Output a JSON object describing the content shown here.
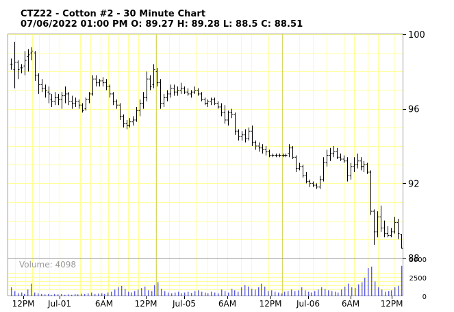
{
  "header": {
    "title": "CTZ22 - Cotton #2 - 30 Minute Chart",
    "ohlc_line": "07/06/2022 01:00 PM O: 89.27 H: 89.28 L: 88.5 C: 88.51"
  },
  "volume_label": "Volume: 4098",
  "chart_data": {
    "type": "bar",
    "symbol": "CTZ22",
    "name": "Cotton #2",
    "interval": "30 Minute",
    "last_bar": {
      "date": "07/06/2022 01:00 PM",
      "open": 89.27,
      "high": 89.28,
      "low": 88.5,
      "close": 88.51
    },
    "price_axis": {
      "ticks": [
        100,
        96,
        92,
        88
      ],
      "range": [
        88,
        100
      ],
      "side": "right",
      "grid": true
    },
    "volume_axis": {
      "ticks": [
        5000,
        2500,
        0
      ],
      "range": [
        0,
        5000
      ]
    },
    "x_ticks": [
      "12PM",
      "Jul-01",
      "6AM",
      "12PM",
      "Jul-05",
      "6AM",
      "12PM",
      "Jul-06",
      "6AM",
      "12PM"
    ],
    "colors": {
      "bars": "#000000",
      "grid": "#ffff99",
      "volume": "#5c5cdc",
      "panel_border": "#999999",
      "volume_label": "#999999"
    },
    "ohlc": [
      [
        98.4,
        98.7,
        98.1,
        98.4
      ],
      [
        98.1,
        99.6,
        97.1,
        98.5
      ],
      [
        98.5,
        98.6,
        97.6,
        98.1
      ],
      [
        98.2,
        98.4,
        97.9,
        98.2
      ],
      [
        98.3,
        99.1,
        97.8,
        98.6
      ],
      [
        98.8,
        99.2,
        98.0,
        98.9
      ],
      [
        99.0,
        99.3,
        98.6,
        99.1
      ],
      [
        99.0,
        99.1,
        97.5,
        97.8
      ],
      [
        97.8,
        97.9,
        96.8,
        97.3
      ],
      [
        97.3,
        97.6,
        96.9,
        97.1
      ],
      [
        97.1,
        97.3,
        96.6,
        97.0
      ],
      [
        96.9,
        97.2,
        96.3,
        96.8
      ],
      [
        96.5,
        96.8,
        96.1,
        96.4
      ],
      [
        96.4,
        96.9,
        96.2,
        96.6
      ],
      [
        96.6,
        96.8,
        96.2,
        96.5
      ],
      [
        96.5,
        96.9,
        96.0,
        96.7
      ],
      [
        96.7,
        97.2,
        96.3,
        96.8
      ],
      [
        96.8,
        96.9,
        96.2,
        96.4
      ],
      [
        96.4,
        96.7,
        96.0,
        96.3
      ],
      [
        96.3,
        96.6,
        96.1,
        96.4
      ],
      [
        96.4,
        96.5,
        96.0,
        96.2
      ],
      [
        96.2,
        96.3,
        95.8,
        95.9
      ],
      [
        96.0,
        96.6,
        95.9,
        96.5
      ],
      [
        96.5,
        96.9,
        96.3,
        96.8
      ],
      [
        96.8,
        97.8,
        96.7,
        97.6
      ],
      [
        97.6,
        97.8,
        97.2,
        97.4
      ],
      [
        97.4,
        97.6,
        97.2,
        97.5
      ],
      [
        97.5,
        97.7,
        97.2,
        97.4
      ],
      [
        97.4,
        97.6,
        97.0,
        97.2
      ],
      [
        97.2,
        97.3,
        96.6,
        96.8
      ],
      [
        96.8,
        96.9,
        96.2,
        96.4
      ],
      [
        96.4,
        96.5,
        96.0,
        96.2
      ],
      [
        96.2,
        96.3,
        95.4,
        95.6
      ],
      [
        95.6,
        95.7,
        95.0,
        95.2
      ],
      [
        95.2,
        95.4,
        94.9,
        95.1
      ],
      [
        95.1,
        95.5,
        95.0,
        95.3
      ],
      [
        95.3,
        95.6,
        95.1,
        95.4
      ],
      [
        95.4,
        96.1,
        95.3,
        95.9
      ],
      [
        95.9,
        96.5,
        95.6,
        96.3
      ],
      [
        96.3,
        96.9,
        96.0,
        96.6
      ],
      [
        96.6,
        98.0,
        96.4,
        97.6
      ],
      [
        97.6,
        97.8,
        97.0,
        97.2
      ],
      [
        97.3,
        98.4,
        97.1,
        98.1
      ],
      [
        98.0,
        98.2,
        97.2,
        97.4
      ],
      [
        97.4,
        97.6,
        96.0,
        96.3
      ],
      [
        96.3,
        96.8,
        96.1,
        96.6
      ],
      [
        96.6,
        97.0,
        96.4,
        96.8
      ],
      [
        96.8,
        97.3,
        96.6,
        97.1
      ],
      [
        97.1,
        97.3,
        96.7,
        96.9
      ],
      [
        96.9,
        97.2,
        96.7,
        97.0
      ],
      [
        97.0,
        97.4,
        96.8,
        97.1
      ],
      [
        97.1,
        97.2,
        96.8,
        96.9
      ],
      [
        96.9,
        97.1,
        96.7,
        96.8
      ],
      [
        96.8,
        97.0,
        96.6,
        96.9
      ],
      [
        96.9,
        97.2,
        96.8,
        97.0
      ],
      [
        97.0,
        97.1,
        96.7,
        96.8
      ],
      [
        96.8,
        96.9,
        96.4,
        96.5
      ],
      [
        96.5,
        96.6,
        96.2,
        96.3
      ],
      [
        96.3,
        96.5,
        96.1,
        96.4
      ],
      [
        96.4,
        96.6,
        96.2,
        96.5
      ],
      [
        96.5,
        96.6,
        96.2,
        96.3
      ],
      [
        96.3,
        96.4,
        96.0,
        96.1
      ],
      [
        96.1,
        96.3,
        95.6,
        95.8
      ],
      [
        95.8,
        96.2,
        95.2,
        95.4
      ],
      [
        95.4,
        95.9,
        95.1,
        95.8
      ],
      [
        95.8,
        96.0,
        95.5,
        95.7
      ],
      [
        95.7,
        95.8,
        94.6,
        94.8
      ],
      [
        94.8,
        94.9,
        94.3,
        94.5
      ],
      [
        94.5,
        94.8,
        94.3,
        94.6
      ],
      [
        94.6,
        94.9,
        94.2,
        94.4
      ],
      [
        94.4,
        95.0,
        94.3,
        94.8
      ],
      [
        94.8,
        95.1,
        94.0,
        94.2
      ],
      [
        94.2,
        94.3,
        93.8,
        94.0
      ],
      [
        94.0,
        94.2,
        93.7,
        93.9
      ],
      [
        93.9,
        94.1,
        93.6,
        93.8
      ],
      [
        93.8,
        94.0,
        93.5,
        93.7
      ],
      [
        93.7,
        93.8,
        93.4,
        93.5
      ],
      [
        93.5,
        93.6,
        93.4,
        93.5
      ],
      [
        93.5,
        93.6,
        93.4,
        93.5
      ],
      [
        93.5,
        93.6,
        93.4,
        93.5
      ],
      [
        93.5,
        93.6,
        93.4,
        93.5
      ],
      [
        93.5,
        93.6,
        93.4,
        93.5
      ],
      [
        93.6,
        94.1,
        93.4,
        93.9
      ],
      [
        93.9,
        94.0,
        93.3,
        93.4
      ],
      [
        93.4,
        93.5,
        92.6,
        92.8
      ],
      [
        92.8,
        93.1,
        92.7,
        92.9
      ],
      [
        92.9,
        93.0,
        92.3,
        92.4
      ],
      [
        92.4,
        92.6,
        92.0,
        92.1
      ],
      [
        92.1,
        92.2,
        91.8,
        92.0
      ],
      [
        92.0,
        92.1,
        91.8,
        91.9
      ],
      [
        91.9,
        92.0,
        91.7,
        91.8
      ],
      [
        91.8,
        92.4,
        91.7,
        92.2
      ],
      [
        92.2,
        93.4,
        92.1,
        93.1
      ],
      [
        93.1,
        93.8,
        92.9,
        93.5
      ],
      [
        93.5,
        93.9,
        93.2,
        93.6
      ],
      [
        93.6,
        94.0,
        93.4,
        93.7
      ],
      [
        93.7,
        93.9,
        93.3,
        93.4
      ],
      [
        93.4,
        93.6,
        93.2,
        93.3
      ],
      [
        93.3,
        93.5,
        93.1,
        93.2
      ],
      [
        93.2,
        93.4,
        92.1,
        92.4
      ],
      [
        92.4,
        93.1,
        92.2,
        92.9
      ],
      [
        92.9,
        93.4,
        92.6,
        93.0
      ],
      [
        93.0,
        93.6,
        92.8,
        93.2
      ],
      [
        93.2,
        93.4,
        92.7,
        92.9
      ],
      [
        92.9,
        93.2,
        92.6,
        93.0
      ],
      [
        93.0,
        93.1,
        92.5,
        92.6
      ],
      [
        92.6,
        92.7,
        90.3,
        90.5
      ],
      [
        90.5,
        90.6,
        88.7,
        89.4
      ],
      [
        89.4,
        90.5,
        89.1,
        90.2
      ],
      [
        90.2,
        90.8,
        89.4,
        89.6
      ],
      [
        89.6,
        90.0,
        89.1,
        89.3
      ],
      [
        89.3,
        89.7,
        89.1,
        89.2
      ],
      [
        89.2,
        89.6,
        89.1,
        89.4
      ],
      [
        89.4,
        90.2,
        89.3,
        89.9
      ],
      [
        89.9,
        90.1,
        89.0,
        89.3
      ],
      [
        89.27,
        89.28,
        88.5,
        88.51
      ]
    ],
    "volume": [
      1200,
      700,
      400,
      500,
      300,
      900,
      1700,
      500,
      400,
      300,
      250,
      300,
      200,
      300,
      250,
      300,
      200,
      250,
      200,
      300,
      250,
      350,
      300,
      400,
      500,
      300,
      350,
      400,
      300,
      500,
      600,
      900,
      1200,
      1400,
      1000,
      600,
      500,
      700,
      900,
      1100,
      1300,
      800,
      700,
      1500,
      1900,
      1000,
      700,
      500,
      400,
      500,
      600,
      400,
      500,
      600,
      450,
      700,
      800,
      600,
      500,
      400,
      600,
      500,
      400,
      900,
      700,
      500,
      1000,
      800,
      600,
      1200,
      1500,
      1300,
      1000,
      900,
      1200,
      1700,
      1300,
      700,
      800,
      600,
      500,
      400,
      600,
      700,
      900,
      700,
      800,
      1200,
      800,
      600,
      500,
      700,
      900,
      1200,
      1000,
      800,
      700,
      600,
      500,
      900,
      1300,
      1700,
      1200,
      1100,
      1600,
      1900,
      2500,
      3800,
      4000,
      2000,
      1200,
      900,
      600,
      700,
      800,
      1200,
      1400,
      4098
    ]
  }
}
